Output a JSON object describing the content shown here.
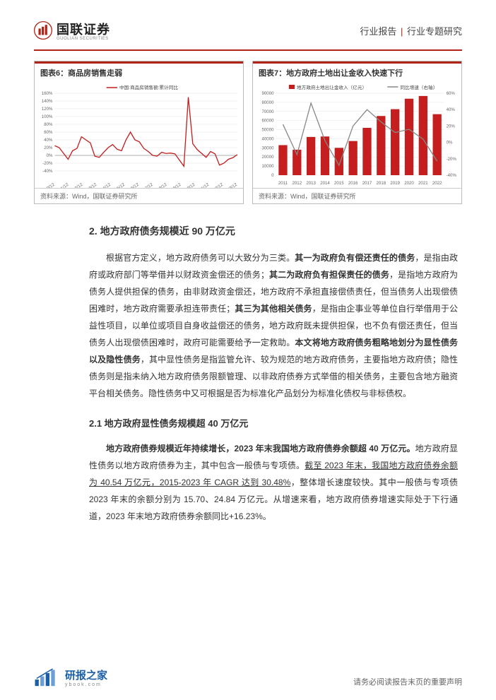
{
  "header": {
    "company_cn": "国联证券",
    "company_en": "GUOLIAN SECURITIES",
    "report_type_left": "行业报告",
    "report_type_right": "行业专题研究"
  },
  "chart6": {
    "title": "图表6：商品房销售走弱",
    "type": "line",
    "legend": "中国:商品房销售额:累计同比",
    "source": "资料来源：Wind，国联证券研究所",
    "x_labels": [
      "2010/12",
      "2011/12",
      "2012/12",
      "2013/12",
      "2014/12",
      "2015/12",
      "2016/12",
      "2017/12",
      "2018/12",
      "2019/12",
      "2020/12",
      "2021/12",
      "2022/12",
      "2023/12"
    ],
    "ylim": [
      -40,
      160
    ],
    "ytick_step": 20,
    "line_color": "#c41e1e",
    "grid_color": "#e6e6e6",
    "data": [
      25,
      20,
      5,
      -10,
      12,
      18,
      48,
      40,
      32,
      -2,
      -5,
      8,
      20,
      28,
      16,
      12,
      40,
      60,
      40,
      35,
      18,
      10,
      0,
      -2,
      8,
      5,
      6,
      4,
      -12,
      -28,
      150,
      30,
      15,
      5,
      -5,
      10,
      4,
      -25,
      -20,
      -10,
      -6,
      2
    ]
  },
  "chart7": {
    "title": "图表7：地方政府土地出让金收入快速下行",
    "type": "bar_line",
    "legend_bar": "地方政府土地出让金收入（亿元）",
    "legend_line": "同比增速（右轴）",
    "source": "资料来源：Wind，国联证券研究所",
    "categories": [
      "2011",
      "2012",
      "2013",
      "2014",
      "2015",
      "2016",
      "2017",
      "2018",
      "2019",
      "2020",
      "2021",
      "2022"
    ],
    "bar_values": [
      33000,
      28000,
      42000,
      42500,
      30000,
      37500,
      52000,
      65000,
      72500,
      84000,
      87000,
      67000
    ],
    "bar_color": "#c41e1e",
    "line_values": [
      22,
      -15,
      48,
      2,
      -28,
      20,
      40,
      25,
      12,
      16,
      4,
      -23
    ],
    "line_color": "#888888",
    "ylim_left": [
      0,
      90000
    ],
    "ytick_left_step": 10000,
    "ylim_right": [
      -40,
      60
    ],
    "ytick_right_step": 20,
    "grid_color": "#e6e6e6"
  },
  "section2": {
    "heading": "2. 地方政府债务规模近 90 万亿元",
    "para1_pre": "根据官方定义，地方政府债务可以大致分为三类。",
    "para1_b1": "其一为政府负有偿还责任的债务",
    "para1_s1": "，是指由政府或政府部门等举借并以财政资金偿还的债务；",
    "para1_b2": "其二为政府负有担保责任的债务",
    "para1_s2": "，是指地方政府为债务人提供担保的债务，由非财政资金偿还，地方政府不承担直接偿债责任，但当债务人出现偿债困难时，地方政府需要承担连带责任；",
    "para1_b3": "其三为其他相关债务",
    "para1_s3": "，是指由企事业等单位自行举借用于公益性项目，以单位或项目自身收益偿还的债务，地方政府既未提供担保，也不负有偿还责任，但当债务人出现偿债困难时，政府可能需要给予一定救助。",
    "para1_b4": "本文将地方政府债务粗略地划分为显性债务以及隐性债务",
    "para1_s4": "，其中显性债务是指监管允许、较为规范的地方政府债务，主要指地方政府债；隐性债务则是指未纳入地方政府债务限额管理、以非政府债券方式举借的相关债务，主要包含地方融资平台相关债务。隐性债务中又可根据是否为标准化产品划分为标准化债权与非标债权。"
  },
  "section21": {
    "heading": "2.1 地方政府显性债务规模超 40 万亿元",
    "para1_b1": "地方政府债券规模近年持续增长，2023 年末我国地方政府债券余额超 40 万亿元。",
    "para1_s1": "地方政府显性债务以地方政府债券为主，其中包含一般债与专项债。",
    "para1_u1": "截至 2023 年末，我国地方政府债券余额为 40.54 万亿元，2015-2023 年 CAGR 达到 30.48%",
    "para1_s2": "，整体增长速度较快。其中一般债与专项债 2023 年末的余额分别为 15.70、24.84 万亿元。从增速来看，地方政府债券增速实际处于下行通道，2023 年末地方政府债券余额同比+16.23%。"
  },
  "footer": {
    "brand": "研报之家",
    "url": "ybook.com",
    "note": "请务必阅读报告末页的重要声明"
  },
  "colors": {
    "brand_red": "#b02418",
    "chart_red": "#c41e1e",
    "grey_line": "#888888",
    "footer_blue": "#1b5fa8"
  }
}
